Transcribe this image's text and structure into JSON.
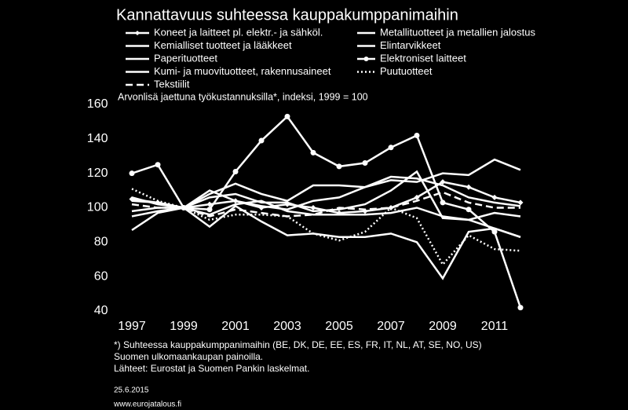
{
  "chart_data": {
    "type": "line",
    "title": "Kannattavuus suhteessa kauppakumppanimaihin",
    "subtitle": "Arvonlisä jaettuna työkustannuksilla*, indeksi, 1999 = 100",
    "x": [
      1997,
      1998,
      1999,
      2000,
      2001,
      2002,
      2003,
      2004,
      2005,
      2006,
      2007,
      2008,
      2009,
      2010,
      2011,
      2012
    ],
    "xlim": [
      1996.5,
      2012.5
    ],
    "xticks": [
      1997,
      1999,
      2001,
      2003,
      2005,
      2007,
      2009,
      2011
    ],
    "ylim": [
      40,
      160
    ],
    "yticks": [
      40,
      60,
      80,
      100,
      120,
      140,
      160
    ],
    "series": [
      {
        "name": "Koneet ja laitteet pl. elektr.- ja sähköl.",
        "color": "#ffffff",
        "marker": "diamond",
        "dash": "solid",
        "values": [
          105,
          103,
          100,
          102,
          104,
          100,
          102,
          100,
          97,
          98,
          100,
          106,
          115,
          112,
          106,
          103
        ]
      },
      {
        "name": "Metallituotteet ja metallien jalostus",
        "color": "#ffffff",
        "marker": "none",
        "dash": "solid",
        "values": [
          87,
          97,
          100,
          108,
          114,
          108,
          104,
          113,
          113,
          112,
          116,
          115,
          120,
          119,
          128,
          122
        ]
      },
      {
        "name": "Kemialliset tuotteet ja lääkkeet",
        "color": "#ffffff",
        "marker": "none",
        "dash": "solid",
        "values": [
          104,
          103,
          100,
          106,
          108,
          103,
          103,
          98,
          99,
          102,
          110,
          121,
          94,
          93,
          97,
          95
        ]
      },
      {
        "name": "Elintarvikkeet",
        "color": "#ffffff",
        "marker": "none",
        "dash": "solid",
        "values": [
          98,
          100,
          100,
          96,
          102,
          104,
          98,
          96,
          96,
          96,
          97,
          100,
          95,
          93,
          88,
          83
        ]
      },
      {
        "name": "Paperituotteet",
        "color": "#ffffff",
        "marker": "none",
        "dash": "solid",
        "values": [
          106,
          102,
          100,
          89,
          101,
          92,
          84,
          85,
          83,
          83,
          85,
          80,
          59,
          86,
          88,
          83
        ]
      },
      {
        "name": "Elektroniset laitteet",
        "color": "#ffffff",
        "marker": "circle",
        "dash": "solid",
        "values": [
          120,
          125,
          100,
          99,
          121,
          139,
          153,
          132,
          124,
          126,
          135,
          142,
          103,
          99,
          86,
          42
        ]
      },
      {
        "name": "Kumi- ja muovituotteet, rakennusaineet",
        "color": "#ffffff",
        "marker": "none",
        "dash": "solid",
        "values": [
          95,
          98,
          100,
          110,
          104,
          101,
          99,
          104,
          106,
          112,
          118,
          117,
          113,
          106,
          103,
          101
        ]
      },
      {
        "name": "Puutuotteet",
        "color": "#ffffff",
        "marker": "none",
        "dash": "dotted",
        "values": [
          111,
          104,
          100,
          93,
          96,
          96,
          95,
          85,
          81,
          86,
          100,
          94,
          67,
          84,
          76,
          75
        ]
      },
      {
        "name": "Tekstiilit",
        "color": "#ffffff",
        "marker": "none",
        "dash": "dashed",
        "values": [
          102,
          100,
          100,
          95,
          99,
          97,
          95,
          96,
          100,
          99,
          100,
          104,
          109,
          103,
          100,
          100
        ]
      }
    ]
  },
  "notes": [
    "*) Suhteessa kauppakumppanimaihin (BE, DK, DE, EE, ES, FR, IT, NL, AT, SE, NO, US)",
    "Suomen ulkomaankaupan painoilla.",
    "Lähteet: Eurostat ja Suomen Pankin laskelmat."
  ],
  "date": "25.6.2015",
  "source_url": "www.eurojatalous.fi"
}
